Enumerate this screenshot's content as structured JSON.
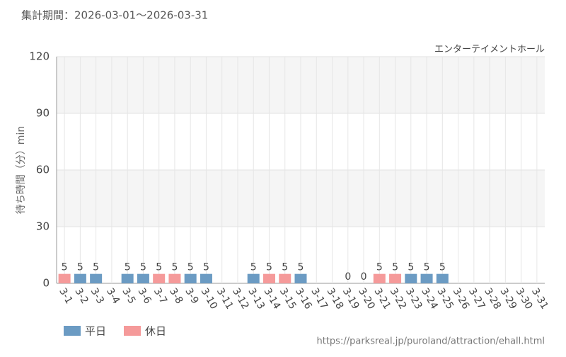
{
  "chart_data": {
    "type": "bar",
    "title": "集計期間：2026-03-01～2026-03-31",
    "subtitle": "エンターテイメントホール",
    "y_label": "待ち時間（分）min",
    "source": "https://parksreal.jp/puroland/attraction/ehall.html",
    "categories": [
      "3-1",
      "3-2",
      "3-3",
      "3-4",
      "3-5",
      "3-6",
      "3-7",
      "3-8",
      "3-9",
      "3-10",
      "3-11",
      "3-12",
      "3-13",
      "3-14",
      "3-15",
      "3-16",
      "3-17",
      "3-18",
      "3-19",
      "3-20",
      "3-21",
      "3-22",
      "3-23",
      "3-24",
      "3-25",
      "3-26",
      "3-27",
      "3-28",
      "3-29",
      "3-30",
      "3-31"
    ],
    "category_colors": [
      "#f48a8a",
      "#444444",
      "#444444",
      "#444444",
      "#444444",
      "#444444",
      "#f48a8a",
      "#f48a8a",
      "#444444",
      "#444444",
      "#444444",
      "#444444",
      "#444444",
      "#f48a8a",
      "#f48a8a",
      "#444444",
      "#444444",
      "#444444",
      "#444444",
      "#f48a8a",
      "#f48a8a",
      "#f48a8a",
      "#444444",
      "#444444",
      "#444444",
      "#444444",
      "#444444",
      "#f48a8a",
      "#f48a8a",
      "#444444",
      "#444444"
    ],
    "series": [
      {
        "name": "平日",
        "color": "#6b9bc3",
        "values": [
          null,
          5,
          5,
          null,
          5,
          5,
          null,
          null,
          5,
          5,
          null,
          null,
          5,
          null,
          null,
          5,
          null,
          null,
          0,
          null,
          null,
          null,
          5,
          5,
          5,
          null,
          null,
          null,
          null,
          null,
          null
        ]
      },
      {
        "name": "休日",
        "color": "#f59a9a",
        "values": [
          5,
          null,
          null,
          null,
          null,
          null,
          5,
          5,
          null,
          null,
          null,
          null,
          null,
          5,
          5,
          null,
          null,
          null,
          null,
          0,
          5,
          5,
          null,
          null,
          null,
          null,
          null,
          null,
          null,
          null,
          null
        ]
      }
    ],
    "ylim": [
      0,
      120
    ],
    "yticks": [
      0,
      30,
      60,
      90,
      120
    ],
    "grid": true
  }
}
